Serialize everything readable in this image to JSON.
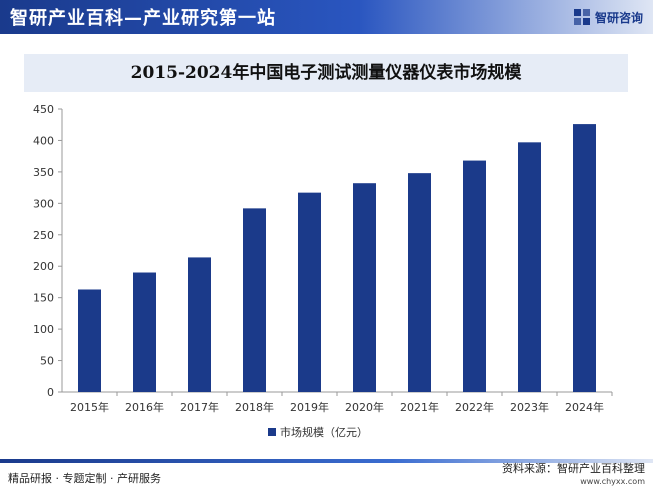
{
  "header": {
    "site_title": "智研产业百科—产业研究第一站",
    "logo_text": "智研咨询"
  },
  "colors": {
    "bar": "#1b3a8a",
    "header": "#1a3a8c",
    "title_band": "#e6ecf6"
  },
  "chart_data": {
    "type": "bar",
    "title": "2015-2024年中国电子测试测量仪器仪表市场规模",
    "categories": [
      "2015年",
      "2016年",
      "2017年",
      "2018年",
      "2019年",
      "2020年",
      "2021年",
      "2022年",
      "2023年",
      "2024年"
    ],
    "series": [
      {
        "name": "市场规模（亿元）",
        "values": [
          163,
          190,
          214,
          292,
          317,
          332,
          348,
          368,
          397,
          426
        ]
      }
    ],
    "ylim": [
      0,
      450
    ],
    "yticks": [
      0,
      50,
      100,
      150,
      200,
      250,
      300,
      350,
      400,
      450
    ],
    "legend": "bottom",
    "grid": false
  },
  "footer": {
    "left": "精品研报 · 专题定制 · 产研服务",
    "source": "资料来源：智研产业百科整理",
    "url": "www.chyxx.com"
  }
}
